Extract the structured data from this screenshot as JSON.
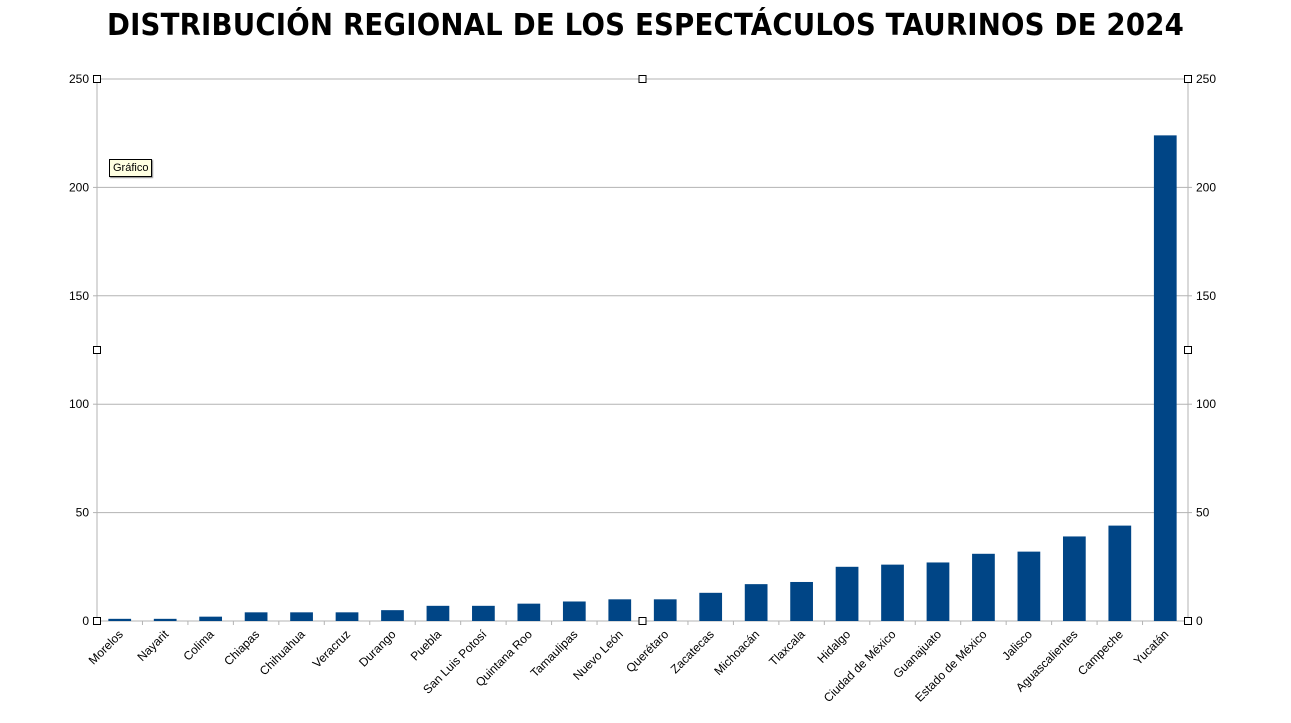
{
  "chart_data": {
    "type": "bar",
    "title": "DISTRIBUCIÓN REGIONAL DE LOS ESPECTÁCULOS TAURINOS DE 2024",
    "xlabel": "",
    "ylabel": "",
    "ylim": [
      0,
      250
    ],
    "yticks": [
      0,
      50,
      100,
      150,
      200,
      250
    ],
    "grid": true,
    "secondary_axis": true,
    "bar_color": "#004586",
    "categories": [
      "Morelos",
      "Nayarit",
      "Colima",
      "Chiapas",
      "Chihuahua",
      "Veracruz",
      "Durango",
      "Puebla",
      "San Luis Potosí",
      "Quintana Roo",
      "Tamaulipas",
      "Nuevo León",
      "Querétaro",
      "Zacatecas",
      "Michoacán",
      "Tlaxcala",
      "Hidalgo",
      "Ciudad de México",
      "Guanajuato",
      "Estado de México",
      "Jalisco",
      "Aguascalientes",
      "Campeche",
      "Yucatán"
    ],
    "values": [
      1,
      1,
      2,
      4,
      4,
      4,
      5,
      7,
      7,
      8,
      9,
      10,
      10,
      13,
      17,
      18,
      25,
      26,
      27,
      31,
      32,
      39,
      44,
      224
    ]
  },
  "tooltip": {
    "text": "Gráfico"
  }
}
